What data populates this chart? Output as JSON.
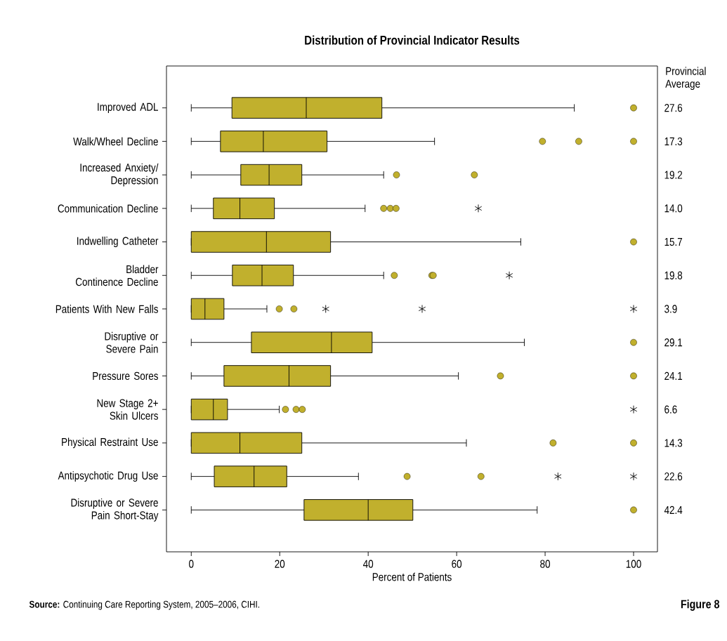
{
  "chart_data": {
    "type": "box",
    "orientation": "horizontal",
    "title": "Distribution of Provincial Indicator Results",
    "xlabel": "Percent of Patients",
    "y2label": "Provincial Average",
    "categories": [
      "Improved ADL",
      "Walk/Wheel Decline",
      "Increased Anxiety/ Depression",
      "Communication Decline",
      "Indwelling Catheter",
      "Bladder Continence Decline",
      "Patients With New Falls",
      "Disruptive or Severe Pain",
      "Pressure Sores",
      "New Stage 2+ Skin Ulcers",
      "Physical Restraint Use",
      "Antipsychotic Drug Use",
      "Disruptive or Severe Pain Short-Stay"
    ],
    "y2_categories": [
      "27.6",
      "17.3",
      "19.2",
      "14.0",
      "15.7",
      "19.8",
      "3.9",
      "29.1",
      "24.1",
      "6.6",
      "14.3",
      "22.6",
      "42.4"
    ],
    "xlim": [
      -5.6,
      105.4
    ],
    "xticks": [
      0,
      20,
      40,
      60,
      80,
      100
    ],
    "series": [
      {
        "color": "#c1b02d",
        "marker": "circle",
        "boxes": [
          {
            "low": 0,
            "q1": 9.2,
            "median": 26.0,
            "q3": 43.1,
            "high": 86.6,
            "outliers": [
              100
            ]
          },
          {
            "low": 0,
            "q1": 6.6,
            "median": 16.3,
            "q3": 30.7,
            "high": 55.0,
            "outliers": [
              79.4,
              87.6,
              100
            ]
          },
          {
            "low": 0,
            "q1": 11.2,
            "median": 17.6,
            "q3": 25.0,
            "high": 43.5,
            "outliers": [
              46.4,
              64.0
            ]
          },
          {
            "low": 0,
            "q1": 5.0,
            "median": 11.0,
            "q3": 18.8,
            "high": 39.3,
            "outliers": [
              43.5,
              45.0,
              46.3
            ]
          },
          {
            "low": 0,
            "q1": 0,
            "median": 17.0,
            "q3": 31.5,
            "high": 74.5,
            "outliers": [
              100
            ]
          },
          {
            "low": 0,
            "q1": 9.3,
            "median": 16.0,
            "q3": 23.1,
            "high": 43.5,
            "outliers": [
              45.9,
              54.4,
              54.7
            ]
          },
          {
            "low": 0,
            "q1": 0,
            "median": 3.1,
            "q3": 7.4,
            "high": 17.1,
            "outliers": [
              19.9,
              23.2
            ]
          },
          {
            "low": 0,
            "q1": 13.6,
            "median": 31.7,
            "q3": 40.9,
            "high": 75.3,
            "outliers": [
              100
            ]
          },
          {
            "low": 0,
            "q1": 7.4,
            "median": 22.1,
            "q3": 31.5,
            "high": 60.4,
            "outliers": [
              69.9,
              100
            ]
          },
          {
            "low": 0,
            "q1": 0,
            "median": 5.0,
            "q3": 8.2,
            "high": 19.9,
            "outliers": [
              21.3,
              23.7,
              25.1
            ]
          },
          {
            "low": 0,
            "q1": 0,
            "median": 11.0,
            "q3": 25.0,
            "high": 62.2,
            "outliers": [
              81.8,
              100
            ]
          },
          {
            "low": 0,
            "q1": 5.2,
            "median": 14.2,
            "q3": 21.6,
            "high": 37.8,
            "outliers": [
              48.8,
              65.5
            ]
          },
          {
            "low": 0,
            "q1": 25.5,
            "median": 40.0,
            "q3": 50.1,
            "high": 78.2,
            "outliers": [
              100
            ]
          }
        ]
      },
      {
        "type": "scatter",
        "color": "#000000",
        "marker": "cross",
        "values": [
          null,
          null,
          null,
          64.9,
          null,
          71.9,
          30.4,
          null,
          null,
          100,
          null,
          82.9,
          null
        ]
      },
      {
        "type": "scatter",
        "color": "#000000",
        "marker": "cross",
        "values": [
          null,
          null,
          null,
          null,
          null,
          null,
          52.2,
          null,
          null,
          null,
          null,
          100,
          null
        ]
      },
      {
        "type": "scatter",
        "color": "#000000",
        "marker": "cross",
        "values": [
          null,
          null,
          null,
          null,
          null,
          null,
          100,
          null,
          null,
          null,
          null,
          null,
          null
        ]
      }
    ],
    "annotations": [
      "**Source:** Continuing Care Reporting System, 2005–2006, CIHI.",
      "Figure 8"
    ]
  }
}
